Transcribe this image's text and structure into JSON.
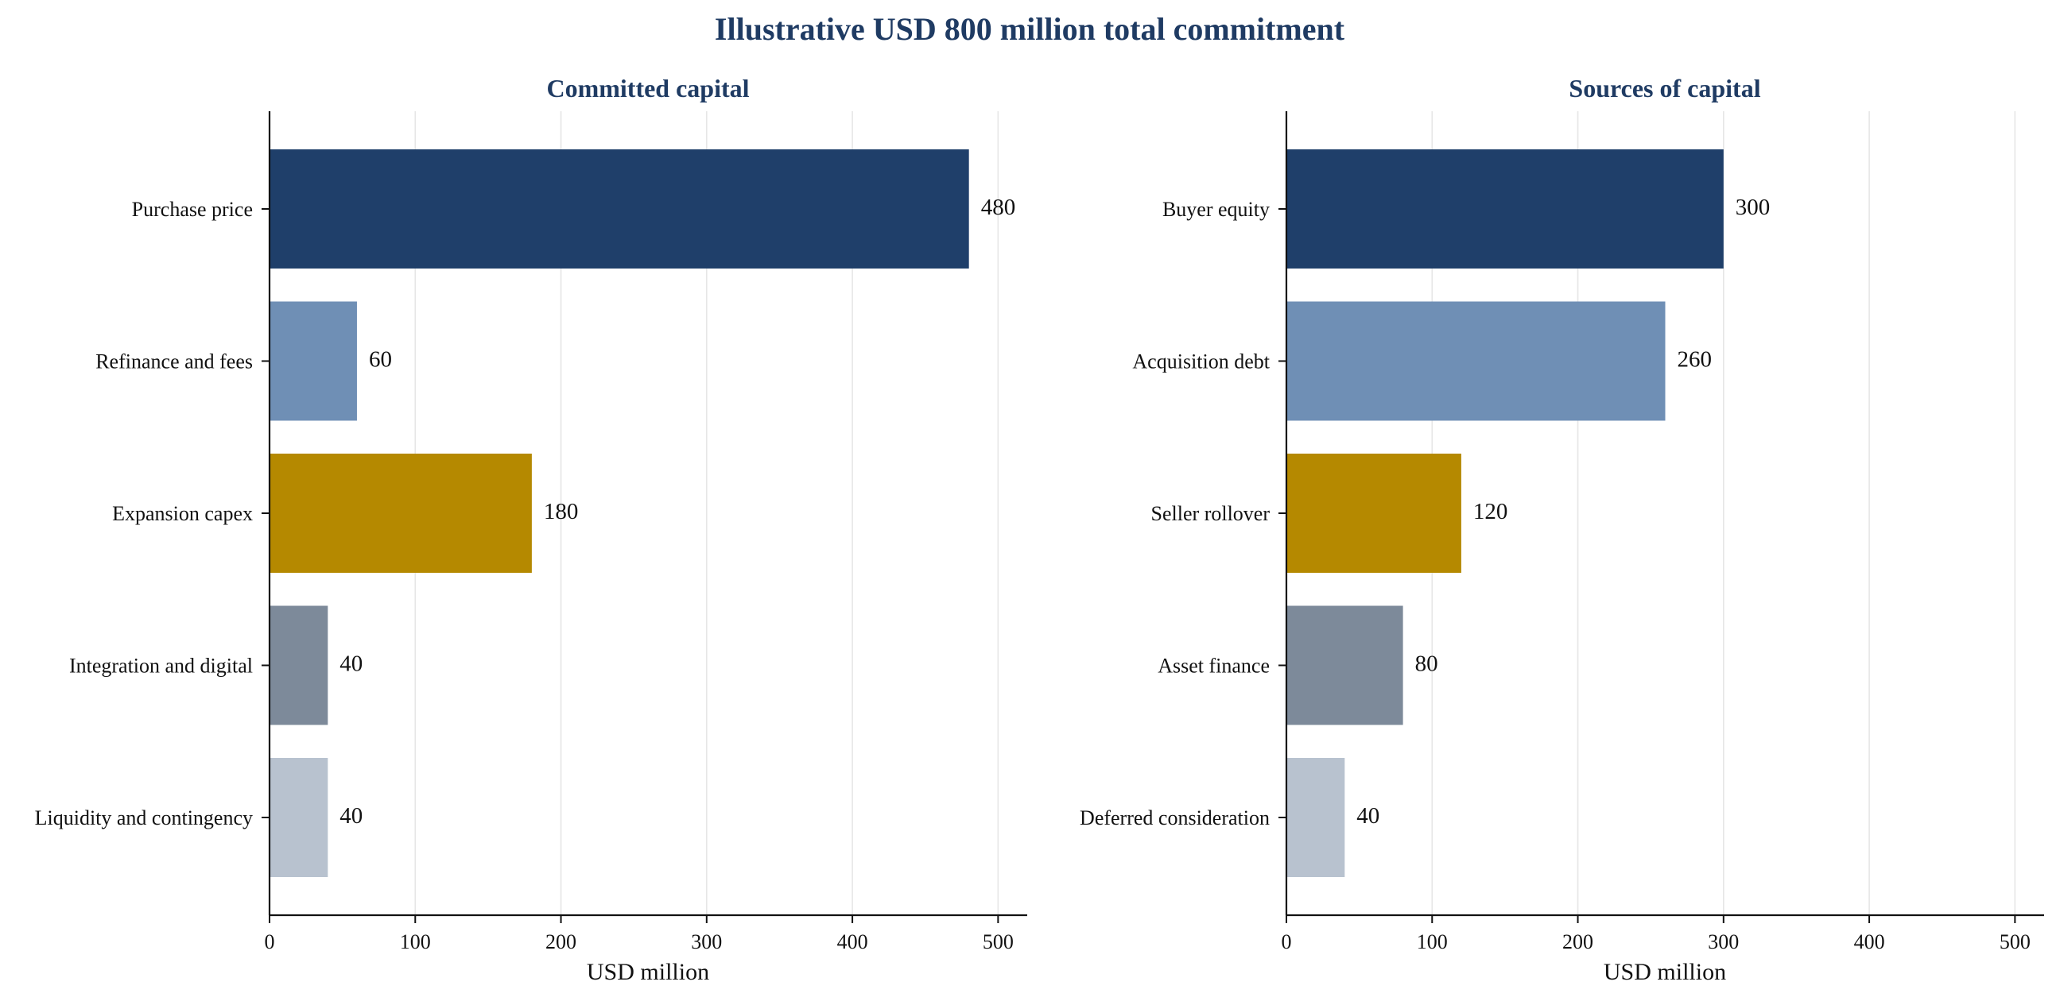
{
  "suptitle": "Illustrative USD 800 million total commitment",
  "chart_data": [
    {
      "type": "bar",
      "orientation": "horizontal",
      "title": "Committed capital",
      "xlabel": "USD million",
      "ylabel": "",
      "xlim": [
        0,
        520
      ],
      "xticks": [
        0,
        100,
        200,
        300,
        400,
        500
      ],
      "grid": "vertical",
      "categories": [
        "Purchase price",
        "Refinance and fees",
        "Expansion capex",
        "Integration and digital",
        "Liquidity and contingency"
      ],
      "values": [
        480,
        60,
        180,
        40,
        40
      ],
      "colors": [
        "#1f3f6a",
        "#6f8fb5",
        "#b58900",
        "#7d8a9a",
        "#b8c2cf"
      ]
    },
    {
      "type": "bar",
      "orientation": "horizontal",
      "title": "Sources of capital",
      "xlabel": "USD million",
      "ylabel": "",
      "xlim": [
        0,
        520
      ],
      "xticks": [
        0,
        100,
        200,
        300,
        400,
        500
      ],
      "grid": "vertical",
      "categories": [
        "Buyer equity",
        "Acquisition debt",
        "Seller rollover",
        "Asset finance",
        "Deferred consideration"
      ],
      "values": [
        300,
        260,
        120,
        80,
        40
      ],
      "colors": [
        "#1f3f6a",
        "#6f8fb5",
        "#b58900",
        "#7d8a9a",
        "#b8c2cf"
      ]
    }
  ]
}
